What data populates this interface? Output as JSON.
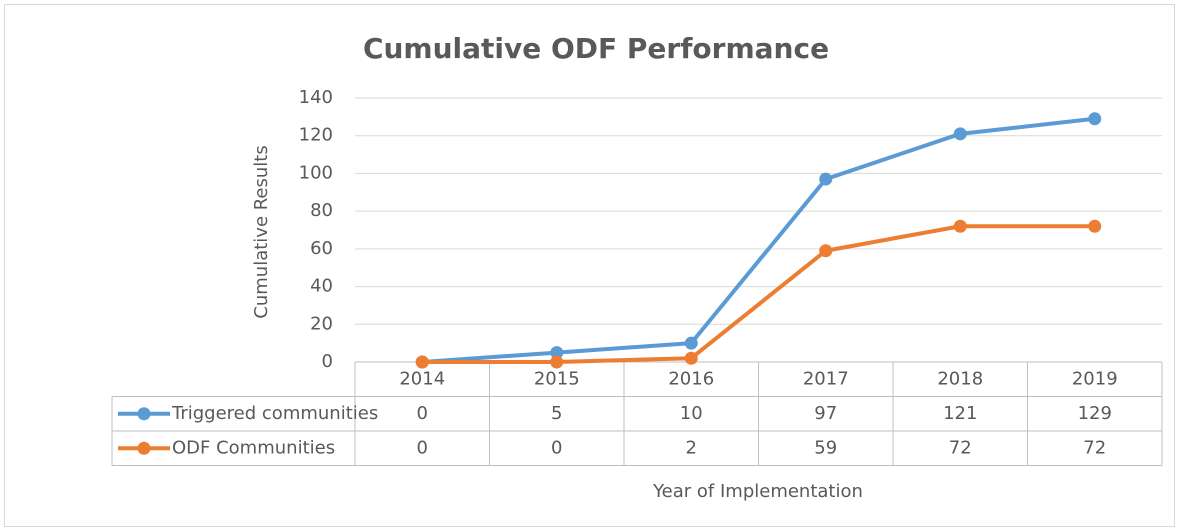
{
  "chart_data": {
    "type": "line",
    "title": "Cumulative ODF Performance",
    "x_label": "Year of Implementation",
    "y_label": "Cumulative Results",
    "categories": [
      "2014",
      "2015",
      "2016",
      "2017",
      "2018",
      "2019"
    ],
    "series": [
      {
        "name": "Triggered communities",
        "color": "#5b9bd5",
        "values": [
          0,
          5,
          10,
          97,
          121,
          129
        ]
      },
      {
        "name": "ODF Communities",
        "color": "#ed7d31",
        "values": [
          0,
          0,
          2,
          59,
          72,
          72
        ]
      }
    ],
    "ylim": [
      0,
      140
    ],
    "yticks": [
      0,
      20,
      40,
      60,
      80,
      100,
      120,
      140
    ],
    "grid": true,
    "markers": true,
    "data_table": true
  }
}
